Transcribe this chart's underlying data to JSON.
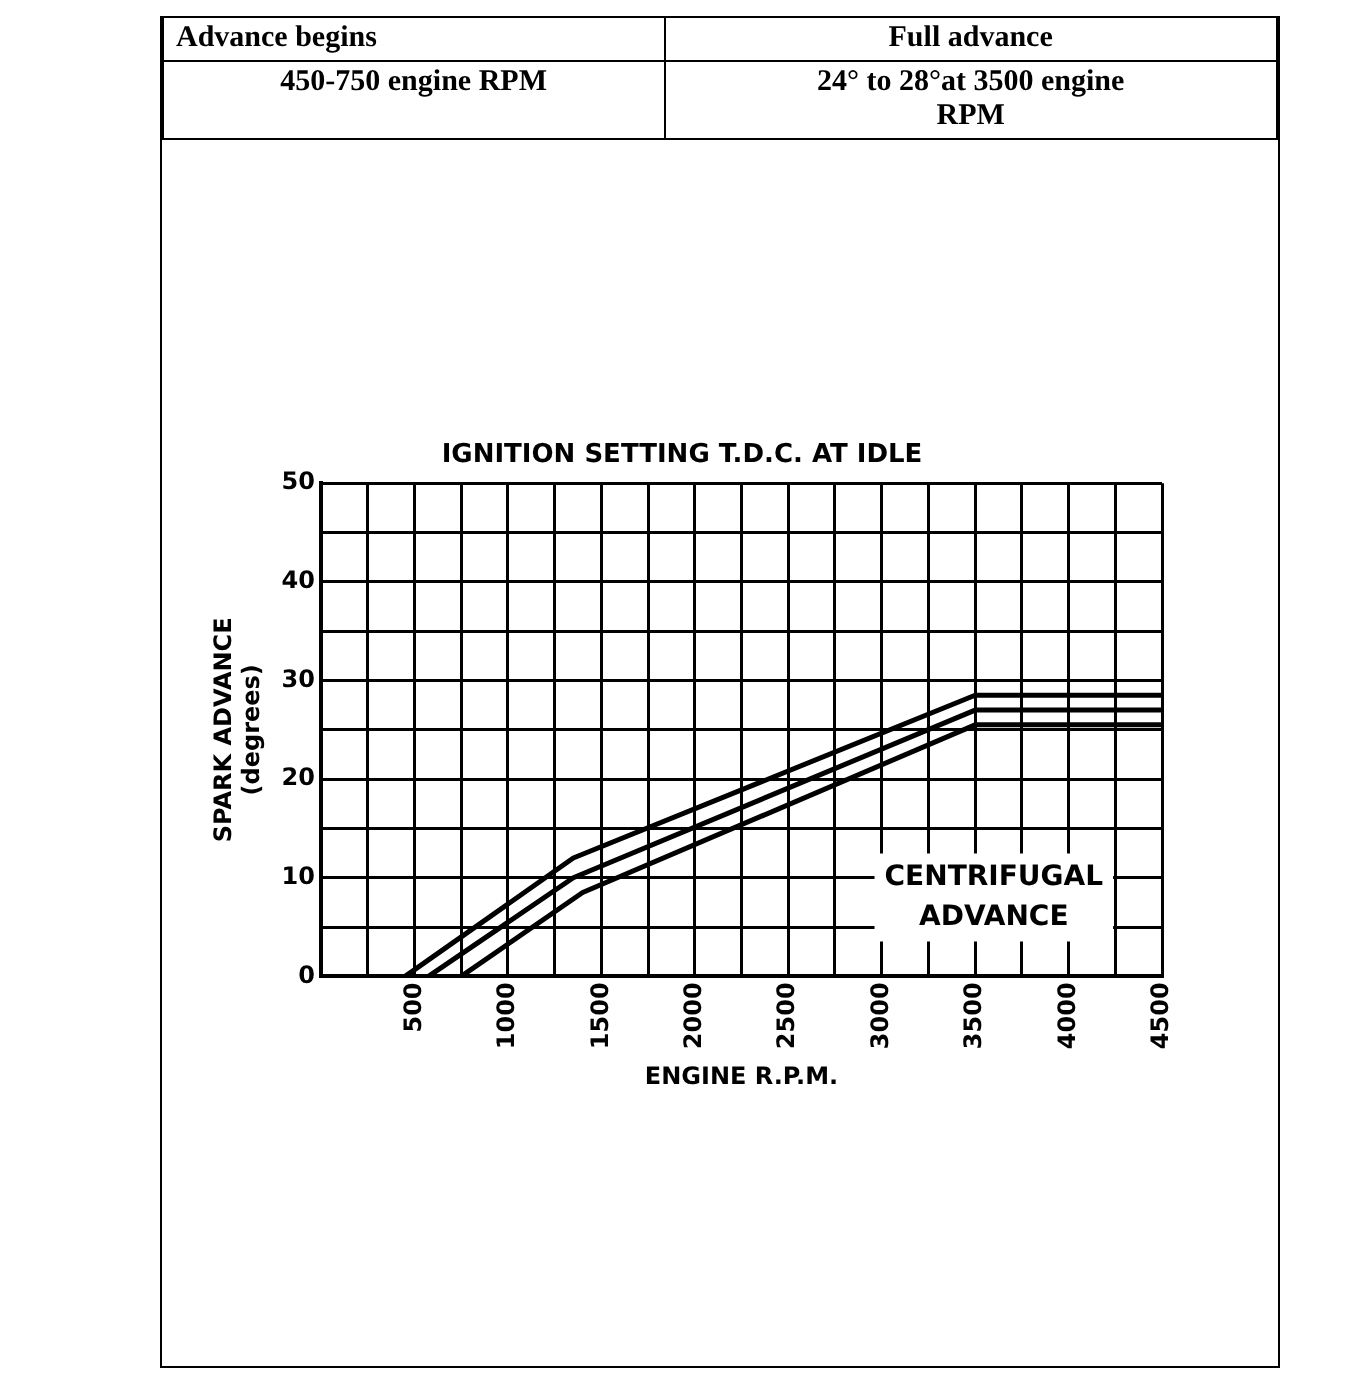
{
  "chart_data": {
    "type": "line",
    "title": "IGNITION SETTING T.D.C. AT IDLE",
    "xlabel": "ENGINE R.P.M.",
    "ylabel": "SPARK ADVANCE\n(degrees)",
    "annotations": [
      "Advance begins",
      "450-750 engine RPM",
      "Full advance",
      "24° to 28°at 3500 engine RPM",
      "CENTRIFUGAL ADVANCE"
    ],
    "series": [
      {
        "color": "#000000",
        "x": [
          450,
          1350,
          3500,
          4500
        ],
        "values": [
          0,
          12,
          28.5,
          28.5
        ]
      },
      {
        "color": "#000000",
        "x": [
          575,
          1350,
          3500,
          4500
        ],
        "values": [
          0,
          10,
          27,
          27
        ]
      },
      {
        "color": "#000000",
        "x": [
          750,
          1400,
          3500,
          4500
        ],
        "values": [
          0,
          8.5,
          25.5,
          25.5
        ]
      }
    ],
    "xlim": [
      0,
      4500
    ],
    "xticks": [
      {
        "value": 0,
        "label": null
      },
      {
        "value": 250,
        "label": null
      },
      500,
      {
        "value": 750,
        "label": null
      },
      1000,
      {
        "value": 1250,
        "label": null
      },
      1500,
      {
        "value": 1750,
        "label": null
      },
      2000,
      {
        "value": 2250,
        "label": null
      },
      2500,
      {
        "value": 2750,
        "label": null
      },
      3000,
      {
        "value": 3250,
        "label": null
      },
      3500,
      {
        "value": 3750,
        "label": null
      },
      4000,
      {
        "value": 4250,
        "label": null
      },
      4500
    ],
    "ylim": [
      0,
      50
    ],
    "yticks": [
      0,
      {
        "value": 5,
        "label": null
      },
      10,
      {
        "value": 15,
        "label": null
      },
      20,
      {
        "value": 25,
        "label": null
      },
      30,
      {
        "value": 35,
        "label": null
      },
      40,
      {
        "value": 45,
        "label": null
      },
      50
    ],
    "grid": true,
    "legend": false,
    "marker": "none",
    "line_style": "solid"
  }
}
